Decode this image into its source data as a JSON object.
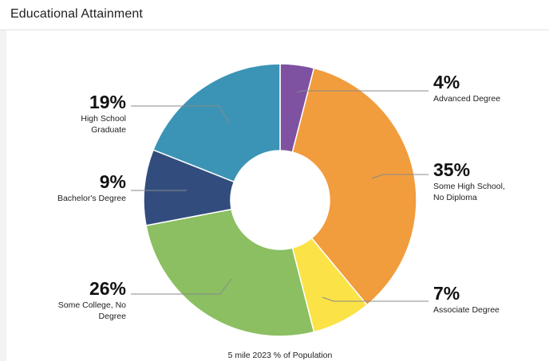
{
  "panel": {
    "title": "Educational Attainment"
  },
  "chart_data": {
    "type": "pie",
    "variant": "donut",
    "caption": "5 mile 2023 % of Population",
    "slices": [
      {
        "label": [
          "Advanced Degree"
        ],
        "value": 4,
        "display": "4%",
        "color": "#7e52a0"
      },
      {
        "label": [
          "Some High School,",
          "No Diploma"
        ],
        "value": 35,
        "display": "35%",
        "color": "#f19c3d"
      },
      {
        "label": [
          "Associate Degree"
        ],
        "value": 7,
        "display": "7%",
        "color": "#fbe246"
      },
      {
        "label": [
          "Some College, No",
          "Degree"
        ],
        "value": 26,
        "display": "26%",
        "color": "#8bbf62"
      },
      {
        "label": [
          "Bachelor's Degree"
        ],
        "value": 9,
        "display": "9%",
        "color": "#324d7d"
      },
      {
        "label": [
          "High School",
          "Graduate"
        ],
        "value": 19,
        "display": "19%",
        "color": "#3b94b5"
      }
    ]
  }
}
